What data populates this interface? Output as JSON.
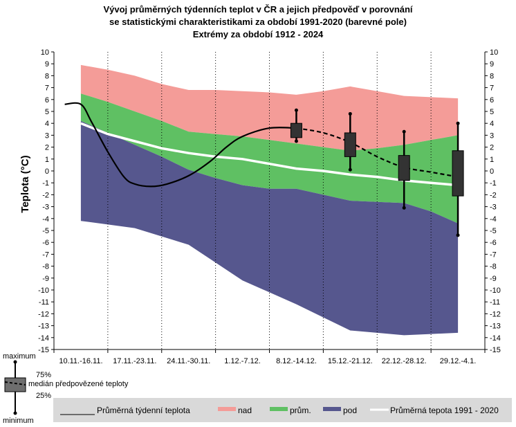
{
  "chart_data": {
    "type": "area",
    "title_lines": [
      "Vývoj průměrných týdenních teplot v ČR a jejich předpověď v porovnání",
      "se statistickými charakteristikami za období 1991-2020 (barevné pole)",
      "Extrémy za období 1912 - 2024"
    ],
    "ylabel": "Teplota (°C)",
    "ylim": [
      -15,
      10
    ],
    "yticks": [
      "10",
      "9",
      "8",
      "7",
      "6",
      "5",
      "4",
      "3",
      "2",
      "1",
      "0",
      "-1",
      "-2",
      "-3",
      "-4",
      "-5",
      "-6",
      "-7",
      "-8",
      "-9",
      "-10",
      "-11",
      "-12",
      "-13",
      "-14",
      "-15"
    ],
    "categories": [
      "10.11.-16.11.",
      "17.11.-23.11.",
      "24.11.-30.11.",
      "1.12.-7.12.",
      "8.12.-14.12.",
      "15.12.-21.12.",
      "22.12.-28.12.",
      "29.12.-4.1."
    ],
    "band_x": [
      0,
      0.5,
      1,
      1.5,
      2,
      2.5,
      3,
      3.5,
      4,
      4.5,
      5,
      5.5,
      6,
      6.5,
      7
    ],
    "bands": {
      "max": [
        8.9,
        8.5,
        8.0,
        7.3,
        6.8,
        6.8,
        6.7,
        6.6,
        6.4,
        6.7,
        7.1,
        6.7,
        6.3,
        6.2,
        6.1
      ],
      "p_upper": [
        6.5,
        5.8,
        5.0,
        4.2,
        3.3,
        3.1,
        2.9,
        2.6,
        2.3,
        2.0,
        1.7,
        1.9,
        2.2,
        2.6,
        3.0
      ],
      "p_lower": [
        4.2,
        3.2,
        2.2,
        1.2,
        0.1,
        -0.6,
        -1.2,
        -1.5,
        -1.5,
        -2.0,
        -2.5,
        -2.6,
        -2.7,
        -3.4,
        -4.4
      ],
      "min": [
        -4.2,
        -4.5,
        -4.8,
        -5.5,
        -6.2,
        -7.7,
        -9.2,
        -10.2,
        -11.2,
        -12.3,
        -13.4,
        -13.6,
        -13.8,
        -13.7,
        -13.6
      ]
    },
    "normal_mean": [
      4.0,
      3.1,
      2.5,
      1.9,
      1.5,
      1.2,
      1.0,
      0.6,
      0.2,
      0.0,
      -0.3,
      -0.5,
      -0.8,
      -1.0,
      -1.2
    ],
    "observed": {
      "x": [
        -0.3,
        0,
        0.2,
        0.5,
        0.8,
        1,
        1.3,
        1.6,
        2,
        2.4,
        2.7,
        3,
        3.5,
        4
      ],
      "y": [
        5.6,
        5.6,
        4.1,
        1.6,
        -0.5,
        -1.1,
        -1.3,
        -1.1,
        -0.4,
        0.8,
        2.0,
        2.9,
        3.6,
        3.6
      ]
    },
    "forecast": {
      "x": [
        4,
        4.5,
        5,
        5.5,
        6,
        6.5,
        7
      ],
      "y": [
        3.6,
        3.2,
        2.4,
        1.2,
        0.3,
        -0.1,
        -0.5
      ]
    },
    "boxes": [
      {
        "category": "8.12.-14.12.",
        "max": 5.1,
        "q3": 4.0,
        "median": 3.6,
        "q1": 2.8,
        "min": 2.5
      },
      {
        "category": "15.12.-21.12.",
        "max": 4.8,
        "q3": 3.2,
        "median": 2.4,
        "q1": 1.2,
        "min": 0.1
      },
      {
        "category": "22.12.-28.12.",
        "max": 3.3,
        "q3": 1.3,
        "median": 0.3,
        "q1": -0.8,
        "min": -3.1
      },
      {
        "category": "29.12.-4.1.",
        "max": 4.0,
        "q3": 1.7,
        "median": -0.5,
        "q1": -2.1,
        "min": -5.4
      }
    ],
    "colors": {
      "nad": "#f49c98",
      "prum": "#5fc063",
      "pod": "#56578e",
      "normal_line": "#ffffff",
      "observed_line": "#000000",
      "box_fill": "#333333",
      "legend_bg": "#d9d9d9"
    },
    "legend": {
      "observed": "Průměrná týdenní teplota",
      "nad": "nad",
      "prum": "prům.",
      "pod": "pod",
      "normal": "Průměrná tepota 1991 - 2020"
    },
    "box_key": {
      "maximum": "maximum",
      "p75": "75%",
      "median": "medián předpovězené teploty",
      "p25": "25%",
      "minimum": "minimum"
    }
  }
}
